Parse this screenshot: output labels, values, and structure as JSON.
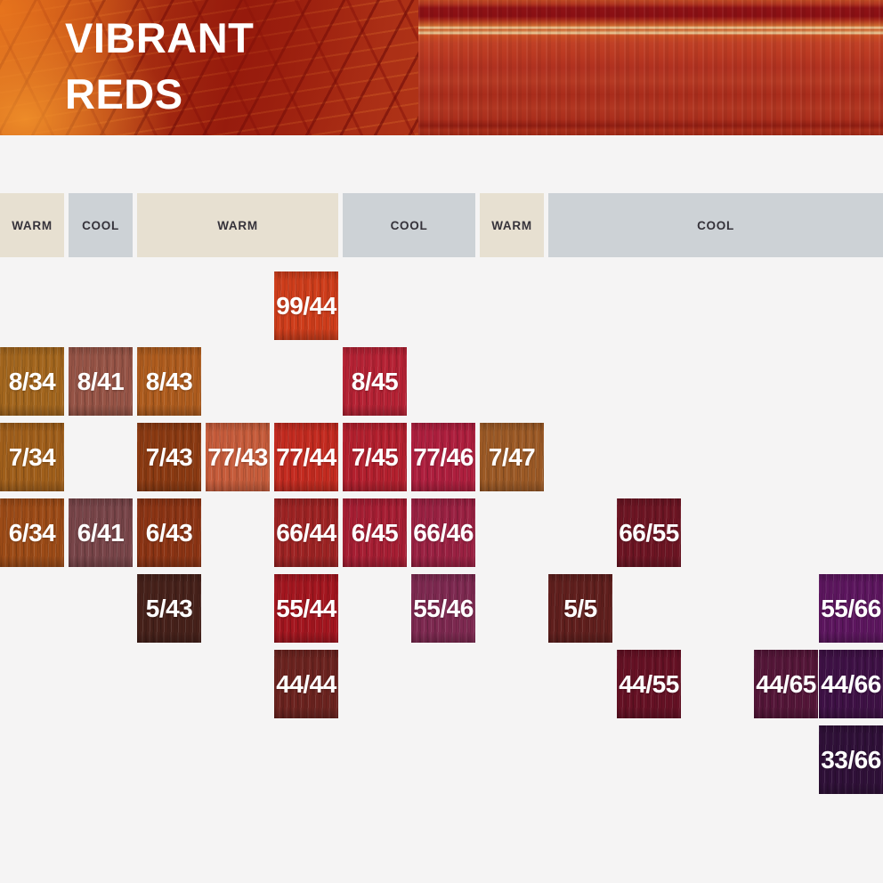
{
  "banner": {
    "title_line1": "VIBRANT",
    "title_line2": "REDS"
  },
  "theme": {
    "page_bg": "#f5f4f4",
    "warm_band_bg": "#e7e0d1",
    "cool_band_bg": "#cdd2d6",
    "band_text_color": "#35323a",
    "swatch_text_color": "#ffffff"
  },
  "temperature_bands": [
    {
      "label": "WARM",
      "tone": "warm",
      "col_start": 1,
      "col_span": 1
    },
    {
      "label": "COOL",
      "tone": "cool",
      "col_start": 2,
      "col_span": 1
    },
    {
      "label": "WARM",
      "tone": "warm",
      "col_start": 3,
      "col_span": 3
    },
    {
      "label": "COOL",
      "tone": "cool",
      "col_start": 6,
      "col_span": 2
    },
    {
      "label": "WARM",
      "tone": "warm",
      "col_start": 8,
      "col_span": 1
    },
    {
      "label": "COOL",
      "tone": "cool",
      "col_start": 9,
      "col_span": 5
    }
  ],
  "swatches": [
    {
      "code": "99/44",
      "row": 1,
      "col": 5,
      "color": "#ce3d1b"
    },
    {
      "code": "8/34",
      "row": 2,
      "col": 1,
      "color": "#a3661e"
    },
    {
      "code": "8/41",
      "row": 2,
      "col": 2,
      "color": "#965446"
    },
    {
      "code": "8/43",
      "row": 2,
      "col": 3,
      "color": "#ae5c1e"
    },
    {
      "code": "8/45",
      "row": 2,
      "col": 6,
      "color": "#b52234"
    },
    {
      "code": "7/34",
      "row": 3,
      "col": 1,
      "color": "#a05f1b"
    },
    {
      "code": "7/43",
      "row": 3,
      "col": 3,
      "color": "#8b3a12"
    },
    {
      "code": "77/43",
      "row": 3,
      "col": 4,
      "color": "#c65c3b"
    },
    {
      "code": "77/44",
      "row": 3,
      "col": 5,
      "color": "#c32b20"
    },
    {
      "code": "7/45",
      "row": 3,
      "col": 6,
      "color": "#b3202e"
    },
    {
      "code": "77/46",
      "row": 3,
      "col": 7,
      "color": "#ae1f3e"
    },
    {
      "code": "7/47",
      "row": 3,
      "col": 8,
      "color": "#9c5a26"
    },
    {
      "code": "6/34",
      "row": 4,
      "col": 1,
      "color": "#9c4b17"
    },
    {
      "code": "6/41",
      "row": 4,
      "col": 2,
      "color": "#784549"
    },
    {
      "code": "6/43",
      "row": 4,
      "col": 3,
      "color": "#8b3414"
    },
    {
      "code": "66/44",
      "row": 4,
      "col": 5,
      "color": "#9d2323"
    },
    {
      "code": "6/45",
      "row": 4,
      "col": 6,
      "color": "#a61e33"
    },
    {
      "code": "66/46",
      "row": 4,
      "col": 7,
      "color": "#9a2142"
    },
    {
      "code": "66/55",
      "row": 4,
      "col": 10,
      "color": "#6d1523"
    },
    {
      "code": "5/43",
      "row": 5,
      "col": 3,
      "color": "#46211a"
    },
    {
      "code": "55/44",
      "row": 5,
      "col": 5,
      "color": "#a3161f"
    },
    {
      "code": "55/46",
      "row": 5,
      "col": 7,
      "color": "#7d2950"
    },
    {
      "code": "5/5",
      "row": 5,
      "col": 9,
      "color": "#601f1d"
    },
    {
      "code": "55/66",
      "row": 5,
      "col": 13,
      "color": "#5c165e"
    },
    {
      "code": "44/44",
      "row": 6,
      "col": 5,
      "color": "#6b231f"
    },
    {
      "code": "44/55",
      "row": 6,
      "col": 10,
      "color": "#651124"
    },
    {
      "code": "44/65",
      "row": 6,
      "col": 12,
      "color": "#541638"
    },
    {
      "code": "44/66",
      "row": 6,
      "col": 13,
      "color": "#3e1145"
    },
    {
      "code": "33/66",
      "row": 7,
      "col": 13,
      "color": "#2f1038"
    }
  ]
}
